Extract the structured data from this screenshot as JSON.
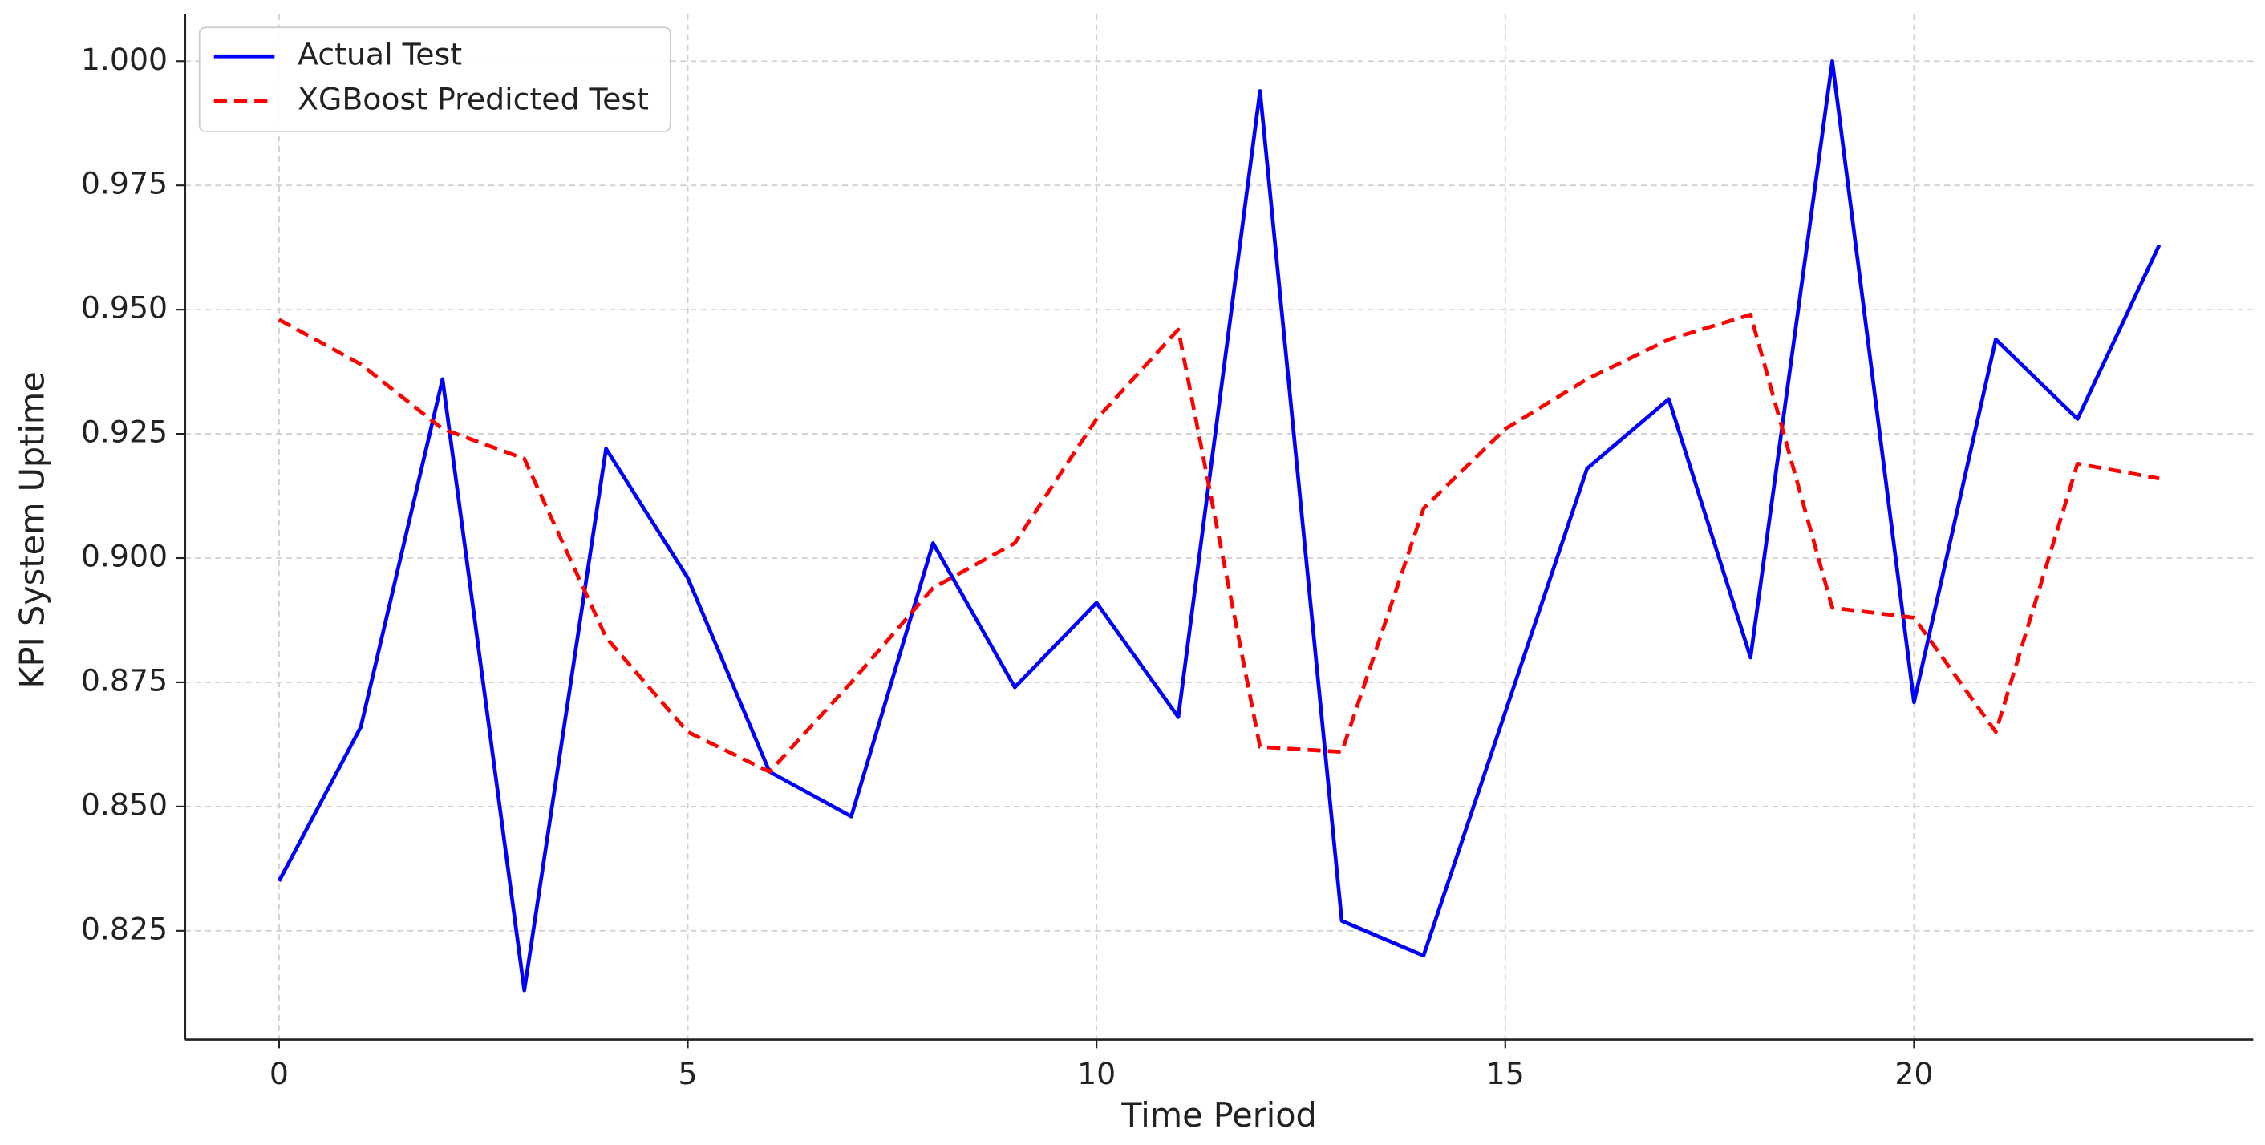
{
  "chart_data": {
    "type": "line",
    "x_label": "Time Period",
    "y_label": "KPI System Uptime",
    "x": [
      0,
      1,
      2,
      3,
      4,
      5,
      6,
      7,
      8,
      9,
      10,
      11,
      12,
      13,
      14,
      15,
      16,
      17,
      18,
      19,
      20,
      21,
      22,
      23
    ],
    "series": [
      {
        "name": "Actual Test",
        "color": "#0000ff",
        "dash": "solid",
        "values": [
          0.835,
          0.866,
          0.936,
          0.813,
          0.922,
          0.896,
          0.857,
          0.848,
          0.903,
          0.874,
          0.891,
          0.868,
          0.994,
          0.827,
          0.82,
          0.869,
          0.918,
          0.932,
          0.88,
          1.0,
          0.871,
          0.944,
          0.928,
          0.963
        ]
      },
      {
        "name": "XGBoost Predicted Test",
        "color": "#ff0000",
        "dash": "dashed",
        "values": [
          0.948,
          0.939,
          0.926,
          0.92,
          0.884,
          0.865,
          0.857,
          0.875,
          0.894,
          0.903,
          0.928,
          0.946,
          0.862,
          0.861,
          0.91,
          0.926,
          0.936,
          0.944,
          0.949,
          0.89,
          0.888,
          0.865,
          0.919,
          0.916
        ]
      }
    ],
    "xlim": [
      -1.15,
      24.15
    ],
    "xticks": [
      0,
      5,
      10,
      15,
      20
    ],
    "ylim": [
      0.8031,
      1.0094
    ],
    "yticks": [
      {
        "value": 0.825,
        "label": "0.825"
      },
      {
        "value": 0.85,
        "label": "0.850"
      },
      {
        "value": 0.875,
        "label": "0.875"
      },
      {
        "value": 0.9,
        "label": "0.900"
      },
      {
        "value": 0.925,
        "label": "0.925"
      },
      {
        "value": 0.95,
        "label": "0.950"
      },
      {
        "value": 0.975,
        "label": "0.975"
      },
      {
        "value": 1.0,
        "label": "1.000"
      }
    ],
    "grid": true,
    "legend": "upper-left"
  }
}
